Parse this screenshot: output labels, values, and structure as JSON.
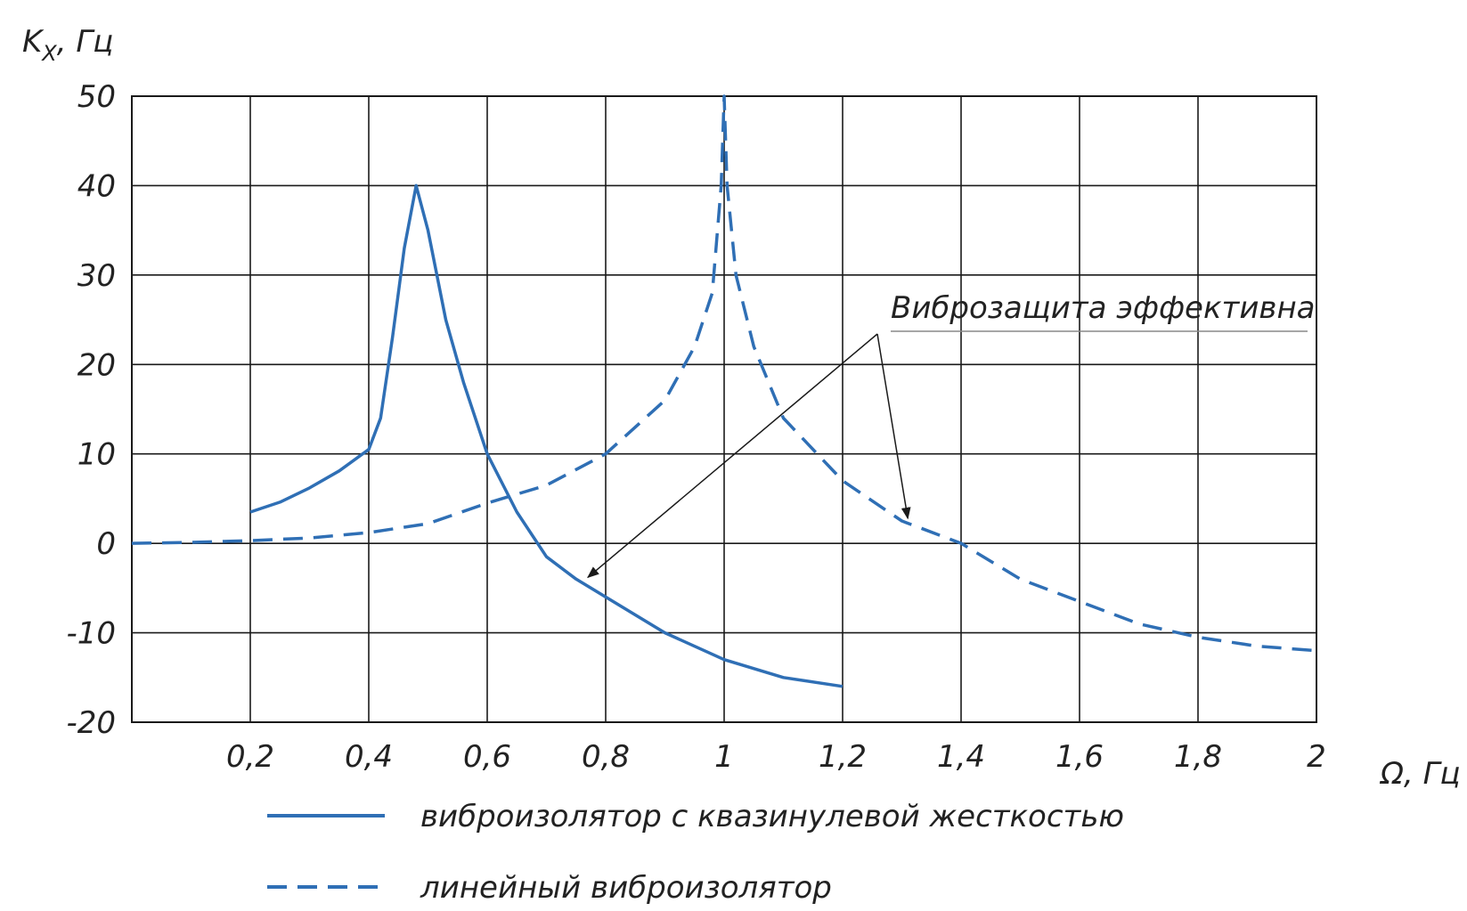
{
  "chart_data": {
    "type": "line",
    "ylabel_main": "K",
    "ylabel_sub": "X",
    "ylabel_rest": ", Гц",
    "xlabel": "Ω, Гц",
    "xlim": [
      0,
      2
    ],
    "ylim": [
      -20,
      50
    ],
    "x_ticks": [
      {
        "value": 0.2,
        "label": "0,2"
      },
      {
        "value": 0.4,
        "label": "0,4"
      },
      {
        "value": 0.6,
        "label": "0,6"
      },
      {
        "value": 0.8,
        "label": "0,8"
      },
      {
        "value": 1.0,
        "label": "1"
      },
      {
        "value": 1.2,
        "label": "1,2"
      },
      {
        "value": 1.4,
        "label": "1,4"
      },
      {
        "value": 1.6,
        "label": "1,6"
      },
      {
        "value": 1.8,
        "label": "1,8"
      },
      {
        "value": 2.0,
        "label": "2"
      }
    ],
    "y_ticks": [
      {
        "value": 50,
        "label": "50"
      },
      {
        "value": 40,
        "label": "40"
      },
      {
        "value": 30,
        "label": "30"
      },
      {
        "value": 20,
        "label": "20"
      },
      {
        "value": 10,
        "label": "10"
      },
      {
        "value": 0,
        "label": "0"
      },
      {
        "value": -10,
        "label": "-10"
      },
      {
        "value": -20,
        "label": "-20"
      }
    ],
    "grid": true,
    "color": "#2f6fb5",
    "series": [
      {
        "name": "виброизолятор с квазинулевой жесткостью",
        "style": "solid",
        "x": [
          0.2,
          0.25,
          0.3,
          0.35,
          0.4,
          0.42,
          0.44,
          0.46,
          0.48,
          0.5,
          0.53,
          0.56,
          0.6,
          0.65,
          0.7,
          0.75,
          0.8,
          0.9,
          1.0,
          1.1,
          1.2
        ],
        "y": [
          3.5,
          4.6,
          6.2,
          8.1,
          10.5,
          14,
          23,
          33,
          40,
          35,
          25,
          18,
          10,
          3.5,
          -1.5,
          -4,
          -6,
          -10,
          -13,
          -15,
          -16
        ]
      },
      {
        "name": "линейный виброизолятор",
        "style": "dashed",
        "x": [
          0.0,
          0.1,
          0.2,
          0.3,
          0.4,
          0.5,
          0.6,
          0.7,
          0.8,
          0.9,
          0.95,
          0.98,
          0.995,
          1.0,
          1.005,
          1.02,
          1.05,
          1.1,
          1.2,
          1.3,
          1.4,
          1.5,
          1.6,
          1.7,
          1.8,
          1.9,
          2.0
        ],
        "y": [
          0,
          0.1,
          0.3,
          0.6,
          1.2,
          2.2,
          4.5,
          6.5,
          10,
          16,
          22,
          28,
          40,
          50,
          40,
          30,
          22,
          14,
          7,
          2.5,
          0,
          -4,
          -6.5,
          -9,
          -10.5,
          -11.5,
          -12
        ]
      }
    ],
    "annotation": {
      "text": "Виброзащита эффективна",
      "targets": [
        {
          "x": 0.77,
          "y": -3.8
        },
        {
          "x": 1.31,
          "y": 2.8
        }
      ]
    }
  }
}
